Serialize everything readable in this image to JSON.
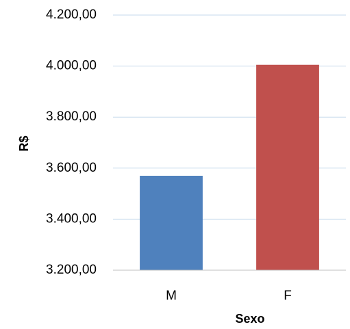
{
  "chart_data": {
    "type": "bar",
    "categories": [
      "M",
      "F"
    ],
    "values": [
      3570,
      4005
    ],
    "colors": [
      "#4f81bd",
      "#c0504d"
    ],
    "xlabel": "Sexo",
    "ylabel": "R$",
    "ylim": [
      3200,
      4200
    ],
    "yticks": [
      {
        "value": 3200,
        "label": "3.200,00"
      },
      {
        "value": 3400,
        "label": "3.400,00"
      },
      {
        "value": 3600,
        "label": "3.600,00"
      },
      {
        "value": 3800,
        "label": "3.800,00"
      },
      {
        "value": 4000,
        "label": "4.000,00"
      },
      {
        "value": 4200,
        "label": "4.200,00"
      }
    ],
    "grid": true
  }
}
